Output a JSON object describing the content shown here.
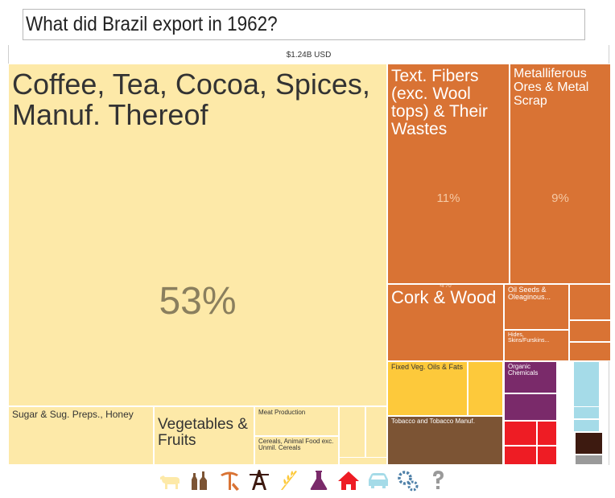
{
  "question": "What did Brazil export in 1962?",
  "total_label": "$1.24B USD",
  "chart_data": {
    "type": "treemap",
    "title": "What did Brazil export in 1962?",
    "total": "$1.24B USD",
    "items": [
      {
        "label": "Coffee, Tea, Cocoa, Spices, Manuf. Thereof",
        "pct": "53%",
        "value": 53,
        "color": "#fde9a8"
      },
      {
        "label": "Sugar & Sug. Preps., Honey",
        "pct": "4%",
        "value": 4,
        "color": "#fde9a8"
      },
      {
        "label": "Vegetables & Fruits",
        "pct": "2%",
        "value": 2,
        "color": "#fde9a8"
      },
      {
        "label": "Meat Production",
        "pct": "1%",
        "value": 1,
        "color": "#fde9a8"
      },
      {
        "label": "Cereals, Animal Food exc. Unmil. Cereals",
        "pct": "1%",
        "value": 1,
        "color": "#fde9a8"
      },
      {
        "label": "",
        "pct": "0.42%",
        "value": 0.42,
        "color": "#fde9a8"
      },
      {
        "label": "",
        "pct": "0.36%",
        "value": 0.36,
        "color": "#fde9a8"
      },
      {
        "label": "",
        "pct": "0.33%",
        "value": 0.33,
        "color": "#fde9a8"
      },
      {
        "label": "Text. Fibers (exc. Wool tops) & Their Wastes",
        "pct": "11%",
        "value": 11,
        "color": "#d97334"
      },
      {
        "label": "Metalliferous Ores & Metal Scrap",
        "pct": "9%",
        "value": 9,
        "color": "#d97334"
      },
      {
        "label": "Cork & Wood",
        "pct": "4%",
        "value": 4,
        "color": "#d97334"
      },
      {
        "label": "Oil Seeds & Oleaginous...",
        "pct": "1%",
        "value": 1,
        "color": "#d97334"
      },
      {
        "label": "Hides, Skins/Furskins...",
        "pct": "0.8%",
        "value": 0.8,
        "color": "#d97334"
      },
      {
        "label": "",
        "pct": "0.63%",
        "value": 0.63,
        "color": "#d97334"
      },
      {
        "label": "",
        "pct": "0.36%",
        "value": 0.36,
        "color": "#d97334"
      },
      {
        "label": "",
        "pct": "0.27%",
        "value": 0.27,
        "color": "#d97334"
      },
      {
        "label": "Fixed Veg. Oils & Fats",
        "pct": "2%",
        "value": 2,
        "color": "#fdc93b"
      },
      {
        "label": "",
        "pct": "0.87%",
        "value": 0.87,
        "color": "#fdc93b"
      },
      {
        "label": "Tobacco and Tobacco Manuf.",
        "pct": "2%",
        "value": 2,
        "color": "#7c5434"
      },
      {
        "label": "Organic Chemicals",
        "pct": "0.69%",
        "value": 0.69,
        "color": "#7a2a6a"
      },
      {
        "label": "",
        "pct": "0.54%",
        "value": 0.54,
        "color": "#7a2a6a"
      },
      {
        "label": "",
        "pct": "0.41%",
        "value": 0.41,
        "color": "#ee1c24"
      },
      {
        "label": "",
        "pct": "0.21%",
        "value": 0.21,
        "color": "#ee1c24"
      },
      {
        "label": "",
        "pct": "0.23%",
        "value": 0.23,
        "color": "#ee1c24"
      },
      {
        "label": "",
        "pct": "0.14%",
        "value": 0.14,
        "color": "#ee1c24"
      },
      {
        "label": "",
        "pct": "0.48%",
        "value": 0.48,
        "color": "#a5dbe8"
      },
      {
        "label": "",
        "pct": "0.15%",
        "value": 0.15,
        "color": "#a5dbe8"
      },
      {
        "label": "",
        "pct": "0.14%",
        "value": 0.14,
        "color": "#a5dbe8"
      },
      {
        "label": "",
        "pct": "0.26%",
        "value": 0.26,
        "color": "#3d1a10"
      },
      {
        "label": "",
        "pct": "0.16%",
        "value": 0.16,
        "color": "#9a9a9a"
      }
    ]
  },
  "categories": [
    {
      "icon": "animal-icon",
      "color": "#fde9a8"
    },
    {
      "icon": "bottles-icon",
      "color": "#7c5434"
    },
    {
      "icon": "pickaxe-icon",
      "color": "#d97334"
    },
    {
      "icon": "oil-rig-icon",
      "color": "#3d1a10"
    },
    {
      "icon": "wheat-icon",
      "color": "#fdc93b"
    },
    {
      "icon": "flask-icon",
      "color": "#7a2a6a"
    },
    {
      "icon": "house-icon",
      "color": "#ee1c24"
    },
    {
      "icon": "car-icon",
      "color": "#a5dbe8"
    },
    {
      "icon": "gears-icon",
      "color": "#4e80a8"
    },
    {
      "icon": "question-icon",
      "color": "#9a9a9a"
    }
  ]
}
